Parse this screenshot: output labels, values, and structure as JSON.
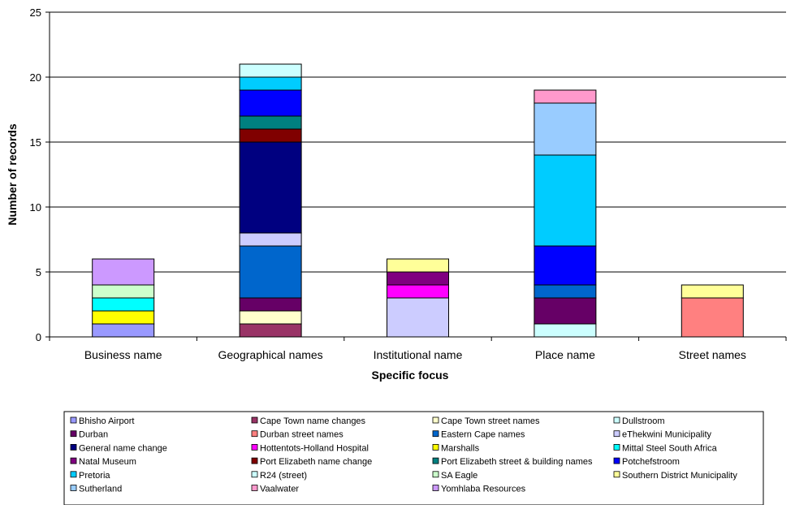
{
  "chart_data": {
    "type": "bar",
    "stacked": true,
    "xlabel": "Specific focus",
    "ylabel": "Number of records",
    "ylim": [
      0,
      25
    ],
    "yticks": [
      0,
      5,
      10,
      15,
      20,
      25
    ],
    "grid": true,
    "legend_position": "bottom",
    "categories": [
      "Business name",
      "Geographical names",
      "Institutional name",
      "Place name",
      "Street names"
    ],
    "series": [
      {
        "name": "Bhisho Airport",
        "color": "#9999ff",
        "values": [
          1,
          0,
          0,
          0,
          0
        ]
      },
      {
        "name": "Cape Town name changes",
        "color": "#993366",
        "values": [
          0,
          1,
          0,
          0,
          0
        ]
      },
      {
        "name": "Cape Town street names",
        "color": "#ffffcc",
        "values": [
          0,
          1,
          0,
          0,
          0
        ]
      },
      {
        "name": "Dullstroom",
        "color": "#ccffff",
        "values": [
          0,
          0,
          0,
          1,
          0
        ]
      },
      {
        "name": "Durban",
        "color": "#660066",
        "values": [
          0,
          1,
          0,
          2,
          0
        ]
      },
      {
        "name": "Durban street names",
        "color": "#ff8080",
        "values": [
          0,
          0,
          0,
          0,
          3
        ]
      },
      {
        "name": "Eastern Cape names",
        "color": "#0066cc",
        "values": [
          0,
          4,
          0,
          1,
          0
        ]
      },
      {
        "name": "eThekwini Municipality",
        "color": "#ccccff",
        "values": [
          0,
          1,
          3,
          0,
          0
        ]
      },
      {
        "name": "General name change",
        "color": "#000080",
        "values": [
          0,
          7,
          0,
          0,
          0
        ]
      },
      {
        "name": "Hottentots-Holland Hospital",
        "color": "#ff00ff",
        "values": [
          0,
          0,
          1,
          0,
          0
        ]
      },
      {
        "name": "Marshalls",
        "color": "#ffff00",
        "values": [
          1,
          0,
          0,
          0,
          0
        ]
      },
      {
        "name": "Mittal Steel South Africa",
        "color": "#00ffff",
        "values": [
          1,
          0,
          0,
          0,
          0
        ]
      },
      {
        "name": "Natal Museum",
        "color": "#800080",
        "values": [
          0,
          0,
          1,
          0,
          0
        ]
      },
      {
        "name": "Port Elizabeth name change",
        "color": "#800000",
        "values": [
          0,
          1,
          0,
          0,
          0
        ]
      },
      {
        "name": "Port Elizabeth street & building names",
        "color": "#008080",
        "values": [
          0,
          1,
          0,
          0,
          0
        ]
      },
      {
        "name": "Potchefstroom",
        "color": "#0000ff",
        "values": [
          0,
          2,
          0,
          3,
          0
        ]
      },
      {
        "name": "Pretoria",
        "color": "#00ccff",
        "values": [
          0,
          1,
          0,
          7,
          0
        ]
      },
      {
        "name": "R24 (street)",
        "color": "#ccffff",
        "values": [
          0,
          1,
          0,
          0,
          0
        ]
      },
      {
        "name": "SA Eagle",
        "color": "#ccffcc",
        "values": [
          1,
          0,
          0,
          0,
          0
        ]
      },
      {
        "name": "Southern District Municipality",
        "color": "#ffff99",
        "values": [
          0,
          0,
          1,
          0,
          1
        ]
      },
      {
        "name": "Sutherland",
        "color": "#99ccff",
        "values": [
          0,
          0,
          0,
          4,
          0
        ]
      },
      {
        "name": "Vaalwater",
        "color": "#ff99cc",
        "values": [
          0,
          0,
          0,
          1,
          0
        ]
      },
      {
        "name": "Yomhlaba Resources",
        "color": "#cc99ff",
        "values": [
          2,
          0,
          0,
          0,
          0
        ]
      }
    ]
  }
}
